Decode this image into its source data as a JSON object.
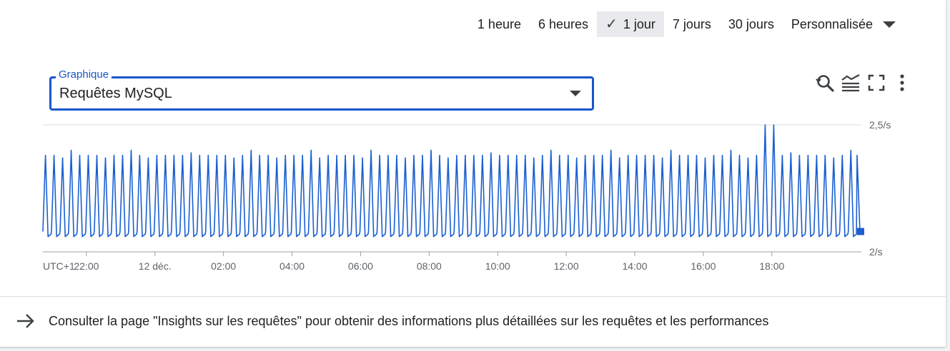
{
  "time_range": {
    "options": [
      "1 heure",
      "6 heures",
      "1 jour",
      "7 jours",
      "30 jours"
    ],
    "selected": "1 jour",
    "custom_label": "Personnalisée"
  },
  "chart_selector": {
    "label": "Graphique",
    "value": "Requêtes MySQL"
  },
  "toolbar": {
    "icons": [
      "zoom-reset-icon",
      "legend-icon",
      "fullscreen-icon",
      "more-vert-icon"
    ]
  },
  "chart_data": {
    "type": "line",
    "ylim": [
      2,
      2.5
    ],
    "y_ticks": [
      "2,5/s",
      "2/s"
    ],
    "x_tick_labels": [
      "UTC+1",
      "22:00",
      "12 déc.",
      "02:00",
      "04:00",
      "06:00",
      "08:00",
      "10:00",
      "12:00",
      "14:00",
      "16:00",
      "18:00"
    ],
    "x_tick_hours": [
      20.73,
      22,
      24,
      26,
      28,
      30,
      32,
      34,
      36,
      38,
      40,
      42
    ],
    "x_range_hours": [
      20.73,
      44.57
    ],
    "series": [
      {
        "color": "#1a5fd0",
        "period_hours": 0.25,
        "peak": 2.38,
        "trough": 2.07,
        "spike": {
          "x": 41.85,
          "y": 2.5
        },
        "last": 2.08
      }
    ]
  },
  "footer": {
    "link_text": "Consulter la page \"Insights sur les requêtes\" pour obtenir des informations plus détaillées sur les requêtes et les performances"
  }
}
